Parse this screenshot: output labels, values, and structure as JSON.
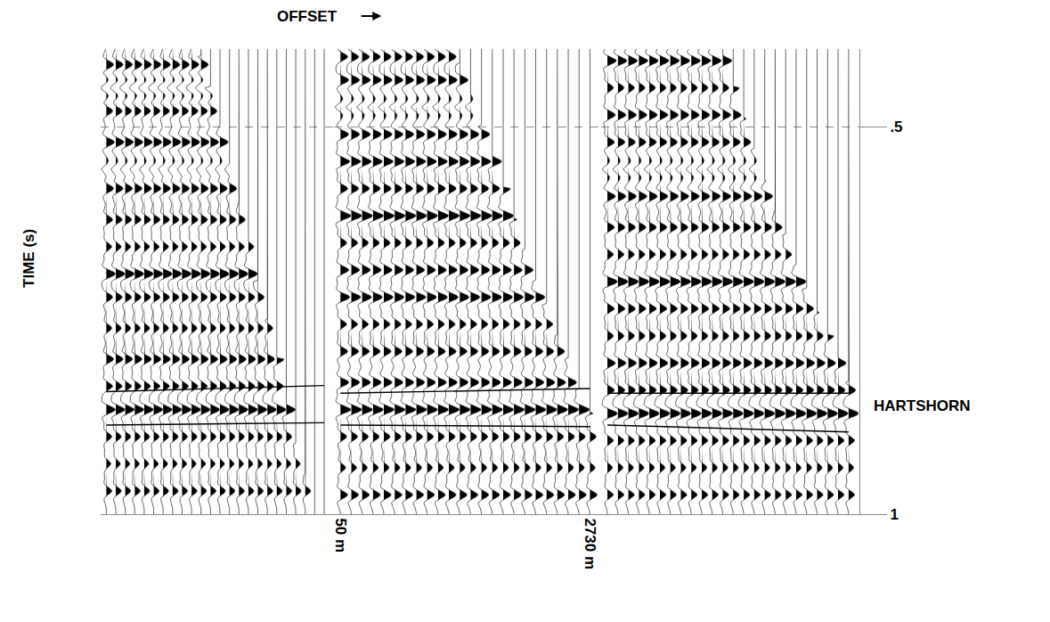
{
  "chart_data": {
    "type": "wiggle",
    "x_label": "OFFSET",
    "y_label": "TIME (s)",
    "ylim": [
      0.4,
      1.0
    ],
    "yticks": [
      {
        "value": 0.5,
        "label": ".5"
      },
      1
    ],
    "grid": true,
    "xlim": [
      -20,
      2850
    ],
    "annotations": [
      {
        "text": "HARTSHORN",
        "y": 0.86
      }
    ],
    "gathers": [
      {
        "offsets": [
          50,
          167,
          283,
          400,
          516,
          633,
          749,
          866,
          982,
          1099,
          1215,
          1332,
          1448,
          1565,
          1681,
          1798,
          1914,
          2031,
          2147,
          2264,
          2380,
          2497,
          2613,
          2730
        ],
        "mute": [
          0.4,
          0.4,
          0.4,
          0.4,
          0.4,
          0.4,
          0.4,
          0.4,
          0.4,
          0.4,
          0.41,
          0.45,
          0.5,
          0.55,
          0.6,
          0.65,
          0.7,
          0.75,
          0.8,
          0.86,
          0.91,
          0.95,
          1.0,
          1.0
        ],
        "events": {
          "times": [
            0.42,
            0.45,
            0.48,
            0.52,
            0.555,
            0.58,
            0.62,
            0.655,
            0.69,
            0.72,
            0.76,
            0.8,
            0.835,
            0.865,
            0.9,
            0.935,
            0.97
          ],
          "amplitudes": [
            0.8,
            -0.6,
            0.7,
            0.9,
            -0.5,
            0.8,
            0.7,
            0.6,
            1.0,
            0.7,
            0.6,
            0.8,
            0.7,
            1.0,
            0.6,
            0.5,
            0.6
          ]
        },
        "horizons": [
          {
            "offsets": [
              50,
              2730
            ],
            "times": [
              0.842,
              0.834
            ]
          },
          {
            "offsets": [
              50,
              2730
            ],
            "times": [
              0.885,
              0.882
            ]
          }
        ]
      },
      {
        "offsets": [
          50,
          167,
          283,
          400,
          516,
          633,
          749,
          866,
          982,
          1099,
          1215,
          1332,
          1448,
          1565,
          1681,
          1798,
          1914,
          2031,
          2147,
          2264,
          2380,
          2497,
          2613,
          2730
        ],
        "mute": [
          0.4,
          0.4,
          0.4,
          0.4,
          0.4,
          0.4,
          0.4,
          0.4,
          0.4,
          0.4,
          0.4,
          0.42,
          0.46,
          0.5,
          0.54,
          0.58,
          0.62,
          0.66,
          0.7,
          0.73,
          0.77,
          0.8,
          0.84,
          0.87
        ],
        "events": {
          "times": [
            0.41,
            0.44,
            0.475,
            0.51,
            0.545,
            0.58,
            0.615,
            0.65,
            0.685,
            0.72,
            0.755,
            0.79,
            0.83,
            0.865,
            0.9,
            0.94,
            0.975
          ],
          "amplitudes": [
            0.7,
            0.8,
            -0.5,
            0.8,
            0.9,
            0.7,
            1.0,
            0.6,
            0.8,
            0.9,
            0.6,
            0.7,
            0.8,
            1.0,
            0.6,
            0.5,
            0.7
          ]
        },
        "horizons": [
          {
            "offsets": [
              50,
              2730
            ],
            "times": [
              0.844,
              0.838
            ]
          },
          {
            "offsets": [
              50,
              2730
            ],
            "times": [
              0.885,
              0.887
            ]
          }
        ]
      },
      {
        "offsets": [
          50,
          167,
          283,
          400,
          516,
          633,
          749,
          866,
          982,
          1099,
          1215,
          1332,
          1448,
          1565,
          1681,
          1798,
          1914,
          2031,
          2147,
          2264,
          2380,
          2497,
          2613,
          2730
        ],
        "mute": [
          0.4,
          0.4,
          0.4,
          0.4,
          0.4,
          0.4,
          0.4,
          0.4,
          0.4,
          0.4,
          0.4,
          0.41,
          0.45,
          0.49,
          0.53,
          0.57,
          0.61,
          0.64,
          0.68,
          0.71,
          0.74,
          0.77,
          0.8,
          0.83
        ],
        "events": {
          "times": [
            0.415,
            0.45,
            0.485,
            0.52,
            0.555,
            0.59,
            0.63,
            0.665,
            0.7,
            0.735,
            0.77,
            0.805,
            0.84,
            0.87,
            0.905,
            0.94,
            0.975
          ],
          "amplitudes": [
            0.9,
            0.6,
            0.8,
            0.7,
            -0.5,
            0.8,
            0.7,
            0.6,
            1.0,
            0.7,
            0.6,
            0.8,
            0.7,
            1.0,
            0.6,
            0.5,
            0.6
          ]
        },
        "horizons": [
          {
            "offsets": [
              50,
              2730
            ],
            "times": [
              0.844,
              0.844
            ]
          },
          {
            "offsets": [
              50,
              2730
            ],
            "times": [
              0.885,
              0.894
            ]
          }
        ],
        "xticks_note_free": true
      }
    ],
    "x_tick_gather": 1,
    "xticks": [
      {
        "value": 50,
        "label": "50 m"
      },
      {
        "value": 2730,
        "label": "2730 m"
      }
    ]
  }
}
